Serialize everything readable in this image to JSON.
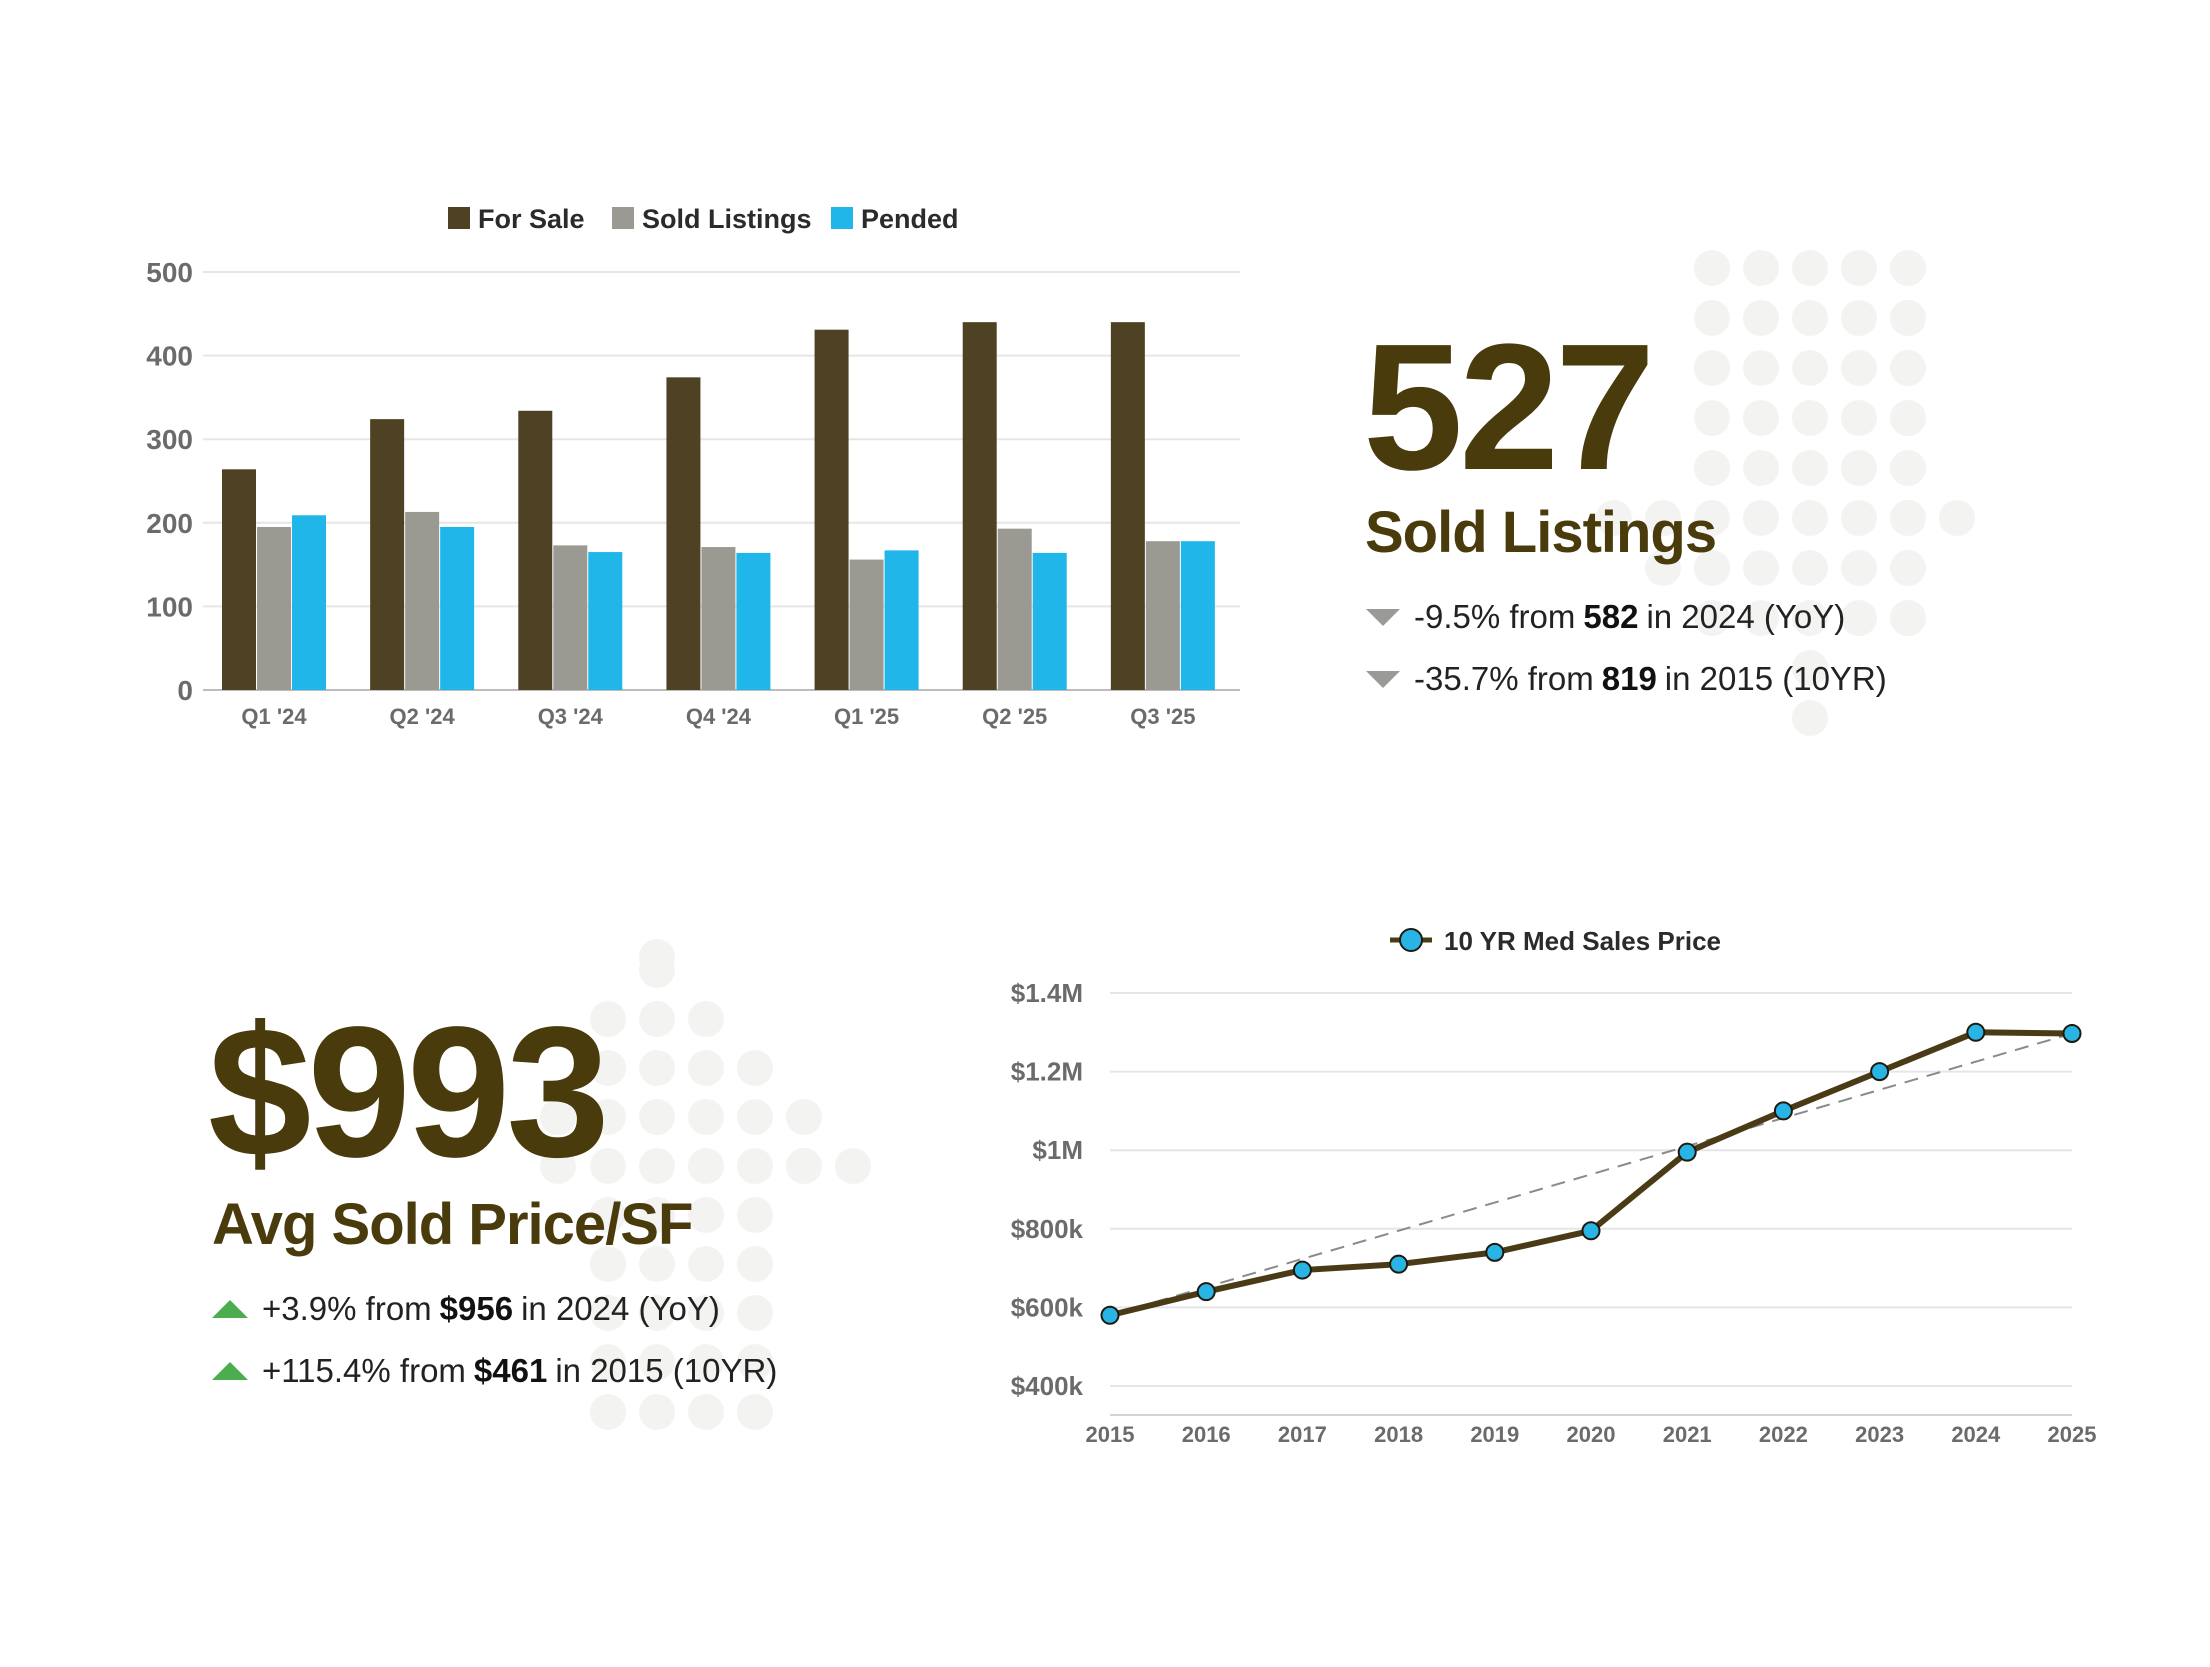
{
  "colors": {
    "for_sale": "#4f4224",
    "sold_listings": "#9b9a92",
    "pended": "#20b6e9",
    "headline": "#4a3b0c",
    "line": "#4a3b16",
    "marker": "#29b4e6",
    "trend_down": "#9a9a96",
    "trend_up": "#4cad4f"
  },
  "chart_data": [
    {
      "type": "bar",
      "categories": [
        "Q1 '24",
        "Q2 '24",
        "Q3 '24",
        "Q4 '24",
        "Q1 '25",
        "Q2 '25",
        "Q3 '25"
      ],
      "series": [
        {
          "name": "For Sale",
          "values": [
            264,
            324,
            334,
            374,
            431,
            440,
            440
          ]
        },
        {
          "name": "Sold Listings",
          "values": [
            195,
            213,
            173,
            171,
            156,
            193,
            178
          ]
        },
        {
          "name": "Pended",
          "values": [
            209,
            195,
            165,
            164,
            167,
            164,
            178
          ]
        }
      ],
      "ylim": [
        0,
        500
      ],
      "yticks": [
        "0",
        "100",
        "200",
        "300",
        "400",
        "500"
      ],
      "grid": true,
      "legend_position": "top"
    },
    {
      "type": "line",
      "x": [
        "2015",
        "2016",
        "2017",
        "2018",
        "2019",
        "2020",
        "2021",
        "2022",
        "2023",
        "2024",
        "2025"
      ],
      "series": [
        {
          "name": "10 YR Med Sales Price",
          "values": [
            580000,
            640000,
            695000,
            710000,
            740000,
            795000,
            995000,
            1100000,
            1200000,
            1300000,
            1297000
          ]
        }
      ],
      "trendline": {
        "style": "dashed",
        "from": 580000,
        "to": 1297000
      },
      "ylim": [
        350000,
        1400000
      ],
      "yticks": [
        "$400k",
        "$600k",
        "$800k",
        "$1M",
        "$1.2M",
        "$1.4M"
      ],
      "grid": true,
      "legend_position": "top"
    }
  ],
  "sold_stat": {
    "value": "527",
    "label": "Sold Listings",
    "yoy": {
      "pre": "-9.5% from",
      "num": "582",
      "post": "in 2024 (YoY)",
      "direction": "down"
    },
    "tenyr": {
      "pre": "-35.7% from",
      "num": "819",
      "post": "in 2015 (10YR)",
      "direction": "down"
    }
  },
  "price_stat": {
    "value": "$993",
    "label": "Avg Sold Price/SF",
    "yoy": {
      "pre": "+3.9% from",
      "num": "$956",
      "post": "in 2024 (YoY)",
      "direction": "up"
    },
    "tenyr": {
      "pre": "+115.4% from",
      "num": "$461",
      "post": "in 2015 (10YR)",
      "direction": "up"
    }
  }
}
